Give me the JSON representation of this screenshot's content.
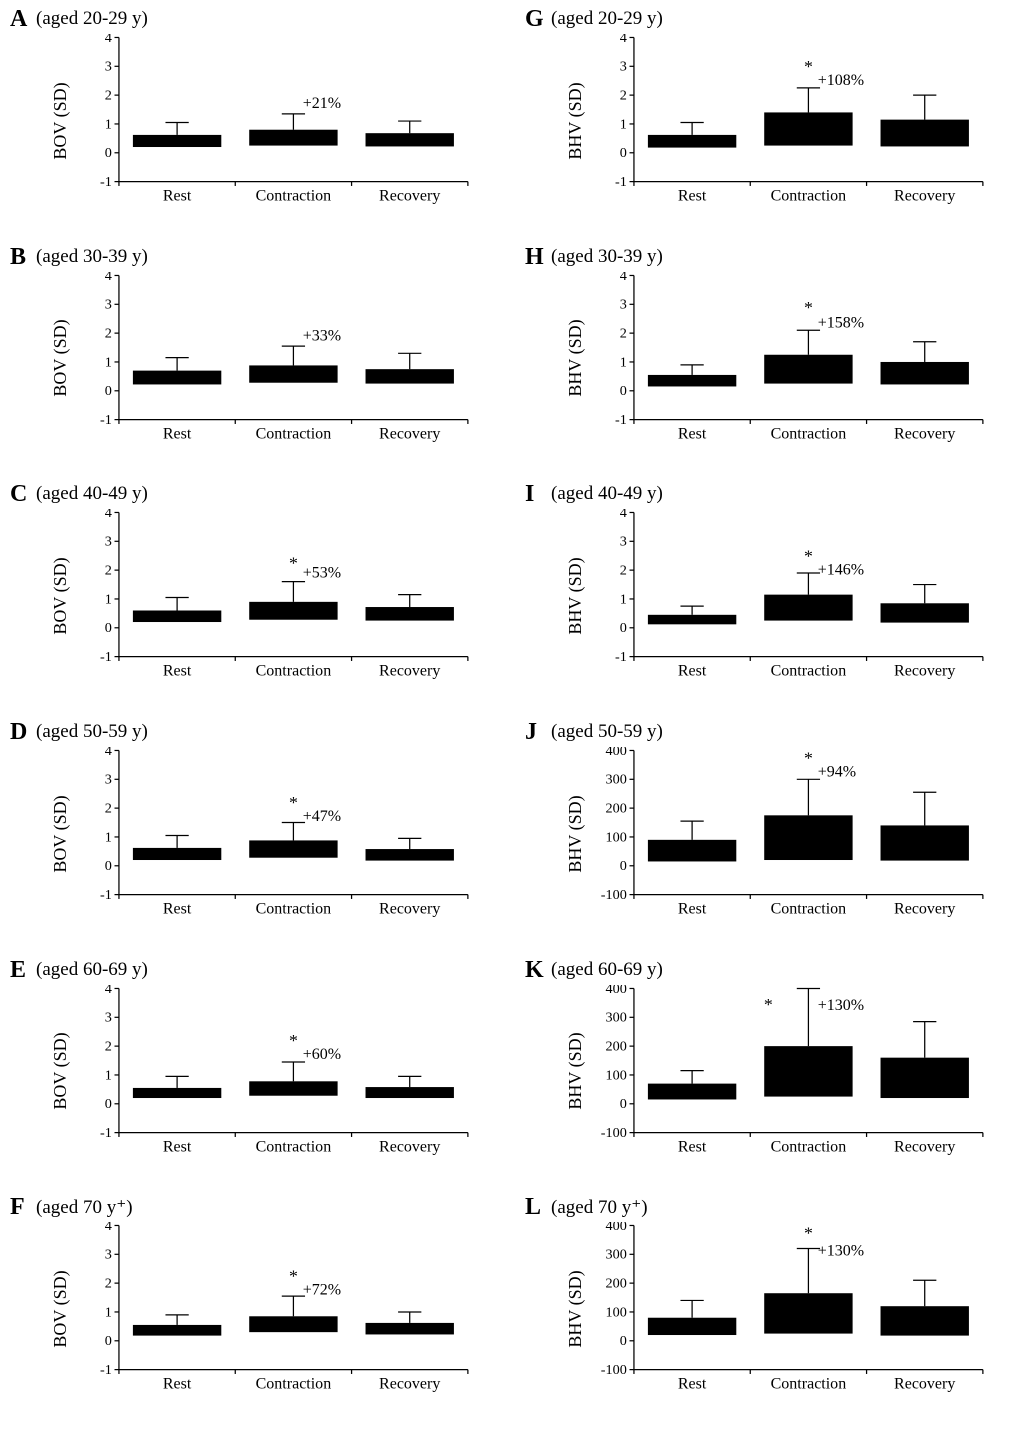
{
  "figure": {
    "background_color": "#ffffff",
    "font_family": "Times New Roman",
    "panel_label_fontsize": 24,
    "panel_sub_fontsize": 19,
    "axis_label_fontsize": 18,
    "tick_label_fontsize": 16,
    "xcat_fontsize": 18,
    "annot_fontsize": 18,
    "bar_color": "#000000",
    "axis_color": "#000000",
    "bar_halfwidth": 0.38,
    "categories": [
      "Rest",
      "Contraction",
      "Recovery"
    ]
  },
  "panels": [
    {
      "id": "A",
      "sub": "(aged 20-29 y)",
      "ylabel": "BOV (SD)",
      "ylim": [
        -1,
        4
      ],
      "yticks": [
        -1,
        0,
        1,
        2,
        3,
        4
      ],
      "bars": [
        {
          "ymin": 0.2,
          "ymax": 0.62,
          "whisker_top": 1.05
        },
        {
          "ymin": 0.25,
          "ymax": 0.8,
          "whisker_top": 1.35,
          "annot": "+21%",
          "annot_y": 1.55,
          "star": false
        },
        {
          "ymin": 0.22,
          "ymax": 0.68,
          "whisker_top": 1.1
        }
      ]
    },
    {
      "id": "B",
      "sub": "(aged 30-39 y)",
      "ylabel": "BOV (SD)",
      "ylim": [
        -1,
        4
      ],
      "yticks": [
        -1,
        0,
        1,
        2,
        3,
        4
      ],
      "bars": [
        {
          "ymin": 0.22,
          "ymax": 0.7,
          "whisker_top": 1.15
        },
        {
          "ymin": 0.28,
          "ymax": 0.88,
          "whisker_top": 1.55,
          "annot": "+33%",
          "annot_y": 1.75,
          "star": false
        },
        {
          "ymin": 0.25,
          "ymax": 0.75,
          "whisker_top": 1.3
        }
      ]
    },
    {
      "id": "C",
      "sub": "(aged 40-49 y)",
      "ylabel": "BOV (SD)",
      "ylim": [
        -1,
        4
      ],
      "yticks": [
        -1,
        0,
        1,
        2,
        3,
        4
      ],
      "bars": [
        {
          "ymin": 0.2,
          "ymax": 0.6,
          "whisker_top": 1.05
        },
        {
          "ymin": 0.28,
          "ymax": 0.9,
          "whisker_top": 1.6,
          "annot": "+53%",
          "annot_y": 1.75,
          "star": true,
          "star_y": 2.05
        },
        {
          "ymin": 0.25,
          "ymax": 0.72,
          "whisker_top": 1.15
        }
      ]
    },
    {
      "id": "D",
      "sub": "(aged 50-59 y)",
      "ylabel": "BOV (SD)",
      "ylim": [
        -1,
        4
      ],
      "yticks": [
        -1,
        0,
        1,
        2,
        3,
        4
      ],
      "bars": [
        {
          "ymin": 0.2,
          "ymax": 0.62,
          "whisker_top": 1.05
        },
        {
          "ymin": 0.28,
          "ymax": 0.88,
          "whisker_top": 1.5,
          "annot": "+47%",
          "annot_y": 1.55,
          "star": true,
          "star_y": 2.0
        },
        {
          "ymin": 0.18,
          "ymax": 0.58,
          "whisker_top": 0.95
        }
      ]
    },
    {
      "id": "E",
      "sub": "(aged 60-69 y)",
      "ylabel": "BOV (SD)",
      "ylim": [
        -1,
        4
      ],
      "yticks": [
        -1,
        0,
        1,
        2,
        3,
        4
      ],
      "bars": [
        {
          "ymin": 0.2,
          "ymax": 0.55,
          "whisker_top": 0.95
        },
        {
          "ymin": 0.28,
          "ymax": 0.78,
          "whisker_top": 1.45,
          "annot": "+60%",
          "annot_y": 1.55,
          "star": true,
          "star_y": 2.0
        },
        {
          "ymin": 0.2,
          "ymax": 0.58,
          "whisker_top": 0.95
        }
      ]
    },
    {
      "id": "F",
      "sub": "(aged 70 y⁺)",
      "ylabel": "BOV (SD)",
      "ylim": [
        -1,
        4
      ],
      "yticks": [
        -1,
        0,
        1,
        2,
        3,
        4
      ],
      "bars": [
        {
          "ymin": 0.18,
          "ymax": 0.55,
          "whisker_top": 0.9
        },
        {
          "ymin": 0.3,
          "ymax": 0.85,
          "whisker_top": 1.55,
          "annot": "+72%",
          "annot_y": 1.6,
          "star": true,
          "star_y": 2.05
        },
        {
          "ymin": 0.22,
          "ymax": 0.62,
          "whisker_top": 1.0
        }
      ]
    },
    {
      "id": "G",
      "sub": "(aged 20-29 y)",
      "ylabel": "BHV (SD)",
      "ylim": [
        -1,
        4
      ],
      "yticks": [
        -1,
        0,
        1,
        2,
        3,
        4
      ],
      "bars": [
        {
          "ymin": 0.18,
          "ymax": 0.62,
          "whisker_top": 1.05
        },
        {
          "ymin": 0.25,
          "ymax": 1.4,
          "whisker_top": 2.25,
          "annot": "+108%",
          "annot_y": 2.35,
          "star": true,
          "star_y": 2.8
        },
        {
          "ymin": 0.22,
          "ymax": 1.15,
          "whisker_top": 2.0
        }
      ]
    },
    {
      "id": "H",
      "sub": "(aged 30-39 y)",
      "ylabel": "BHV (SD)",
      "ylim": [
        -1,
        4
      ],
      "yticks": [
        -1,
        0,
        1,
        2,
        3,
        4
      ],
      "bars": [
        {
          "ymin": 0.15,
          "ymax": 0.55,
          "whisker_top": 0.9
        },
        {
          "ymin": 0.25,
          "ymax": 1.25,
          "whisker_top": 2.1,
          "annot": "+158%",
          "annot_y": 2.2,
          "star": true,
          "star_y": 2.7
        },
        {
          "ymin": 0.22,
          "ymax": 1.0,
          "whisker_top": 1.7
        }
      ]
    },
    {
      "id": "I",
      "sub": "(aged 40-49 y)",
      "ylabel": "BHV (SD)",
      "ylim": [
        -1,
        4
      ],
      "yticks": [
        -1,
        0,
        1,
        2,
        3,
        4
      ],
      "bars": [
        {
          "ymin": 0.12,
          "ymax": 0.45,
          "whisker_top": 0.75
        },
        {
          "ymin": 0.25,
          "ymax": 1.15,
          "whisker_top": 1.9,
          "annot": "+146%",
          "annot_y": 1.85,
          "star": true,
          "star_y": 2.3
        },
        {
          "ymin": 0.18,
          "ymax": 0.85,
          "whisker_top": 1.5
        }
      ]
    },
    {
      "id": "J",
      "sub": "(aged 50-59 y)",
      "ylabel": "BHV (SD)",
      "ylim": [
        -100,
        400
      ],
      "yticks": [
        -100,
        0,
        100,
        200,
        300,
        400
      ],
      "bars": [
        {
          "ymin": 15,
          "ymax": 90,
          "whisker_top": 155
        },
        {
          "ymin": 20,
          "ymax": 175,
          "whisker_top": 300,
          "annot": "+94%",
          "annot_y": 310,
          "star": true,
          "star_y": 355
        },
        {
          "ymin": 18,
          "ymax": 140,
          "whisker_top": 255
        }
      ]
    },
    {
      "id": "K",
      "sub": "(aged 60-69 y)",
      "ylabel": "BHV (SD)",
      "ylim": [
        -100,
        400
      ],
      "yticks": [
        -100,
        0,
        100,
        200,
        300,
        400
      ],
      "bars": [
        {
          "ymin": 15,
          "ymax": 70,
          "whisker_top": 115
        },
        {
          "ymin": 25,
          "ymax": 200,
          "whisker_top": 400,
          "annot": "+130%",
          "annot_y": 325,
          "star": true,
          "star_y": 325,
          "star_offset_x": -45
        },
        {
          "ymin": 20,
          "ymax": 160,
          "whisker_top": 285
        }
      ]
    },
    {
      "id": "L",
      "sub": "(aged 70 y⁺)",
      "ylabel": "BHV (SD)",
      "ylim": [
        -100,
        400
      ],
      "yticks": [
        -100,
        0,
        100,
        200,
        300,
        400
      ],
      "bars": [
        {
          "ymin": 20,
          "ymax": 80,
          "whisker_top": 140
        },
        {
          "ymin": 25,
          "ymax": 165,
          "whisker_top": 320,
          "annot": "+130%",
          "annot_y": 295,
          "star": true,
          "star_y": 355
        },
        {
          "ymin": 18,
          "ymax": 120,
          "whisker_top": 210
        }
      ]
    }
  ]
}
